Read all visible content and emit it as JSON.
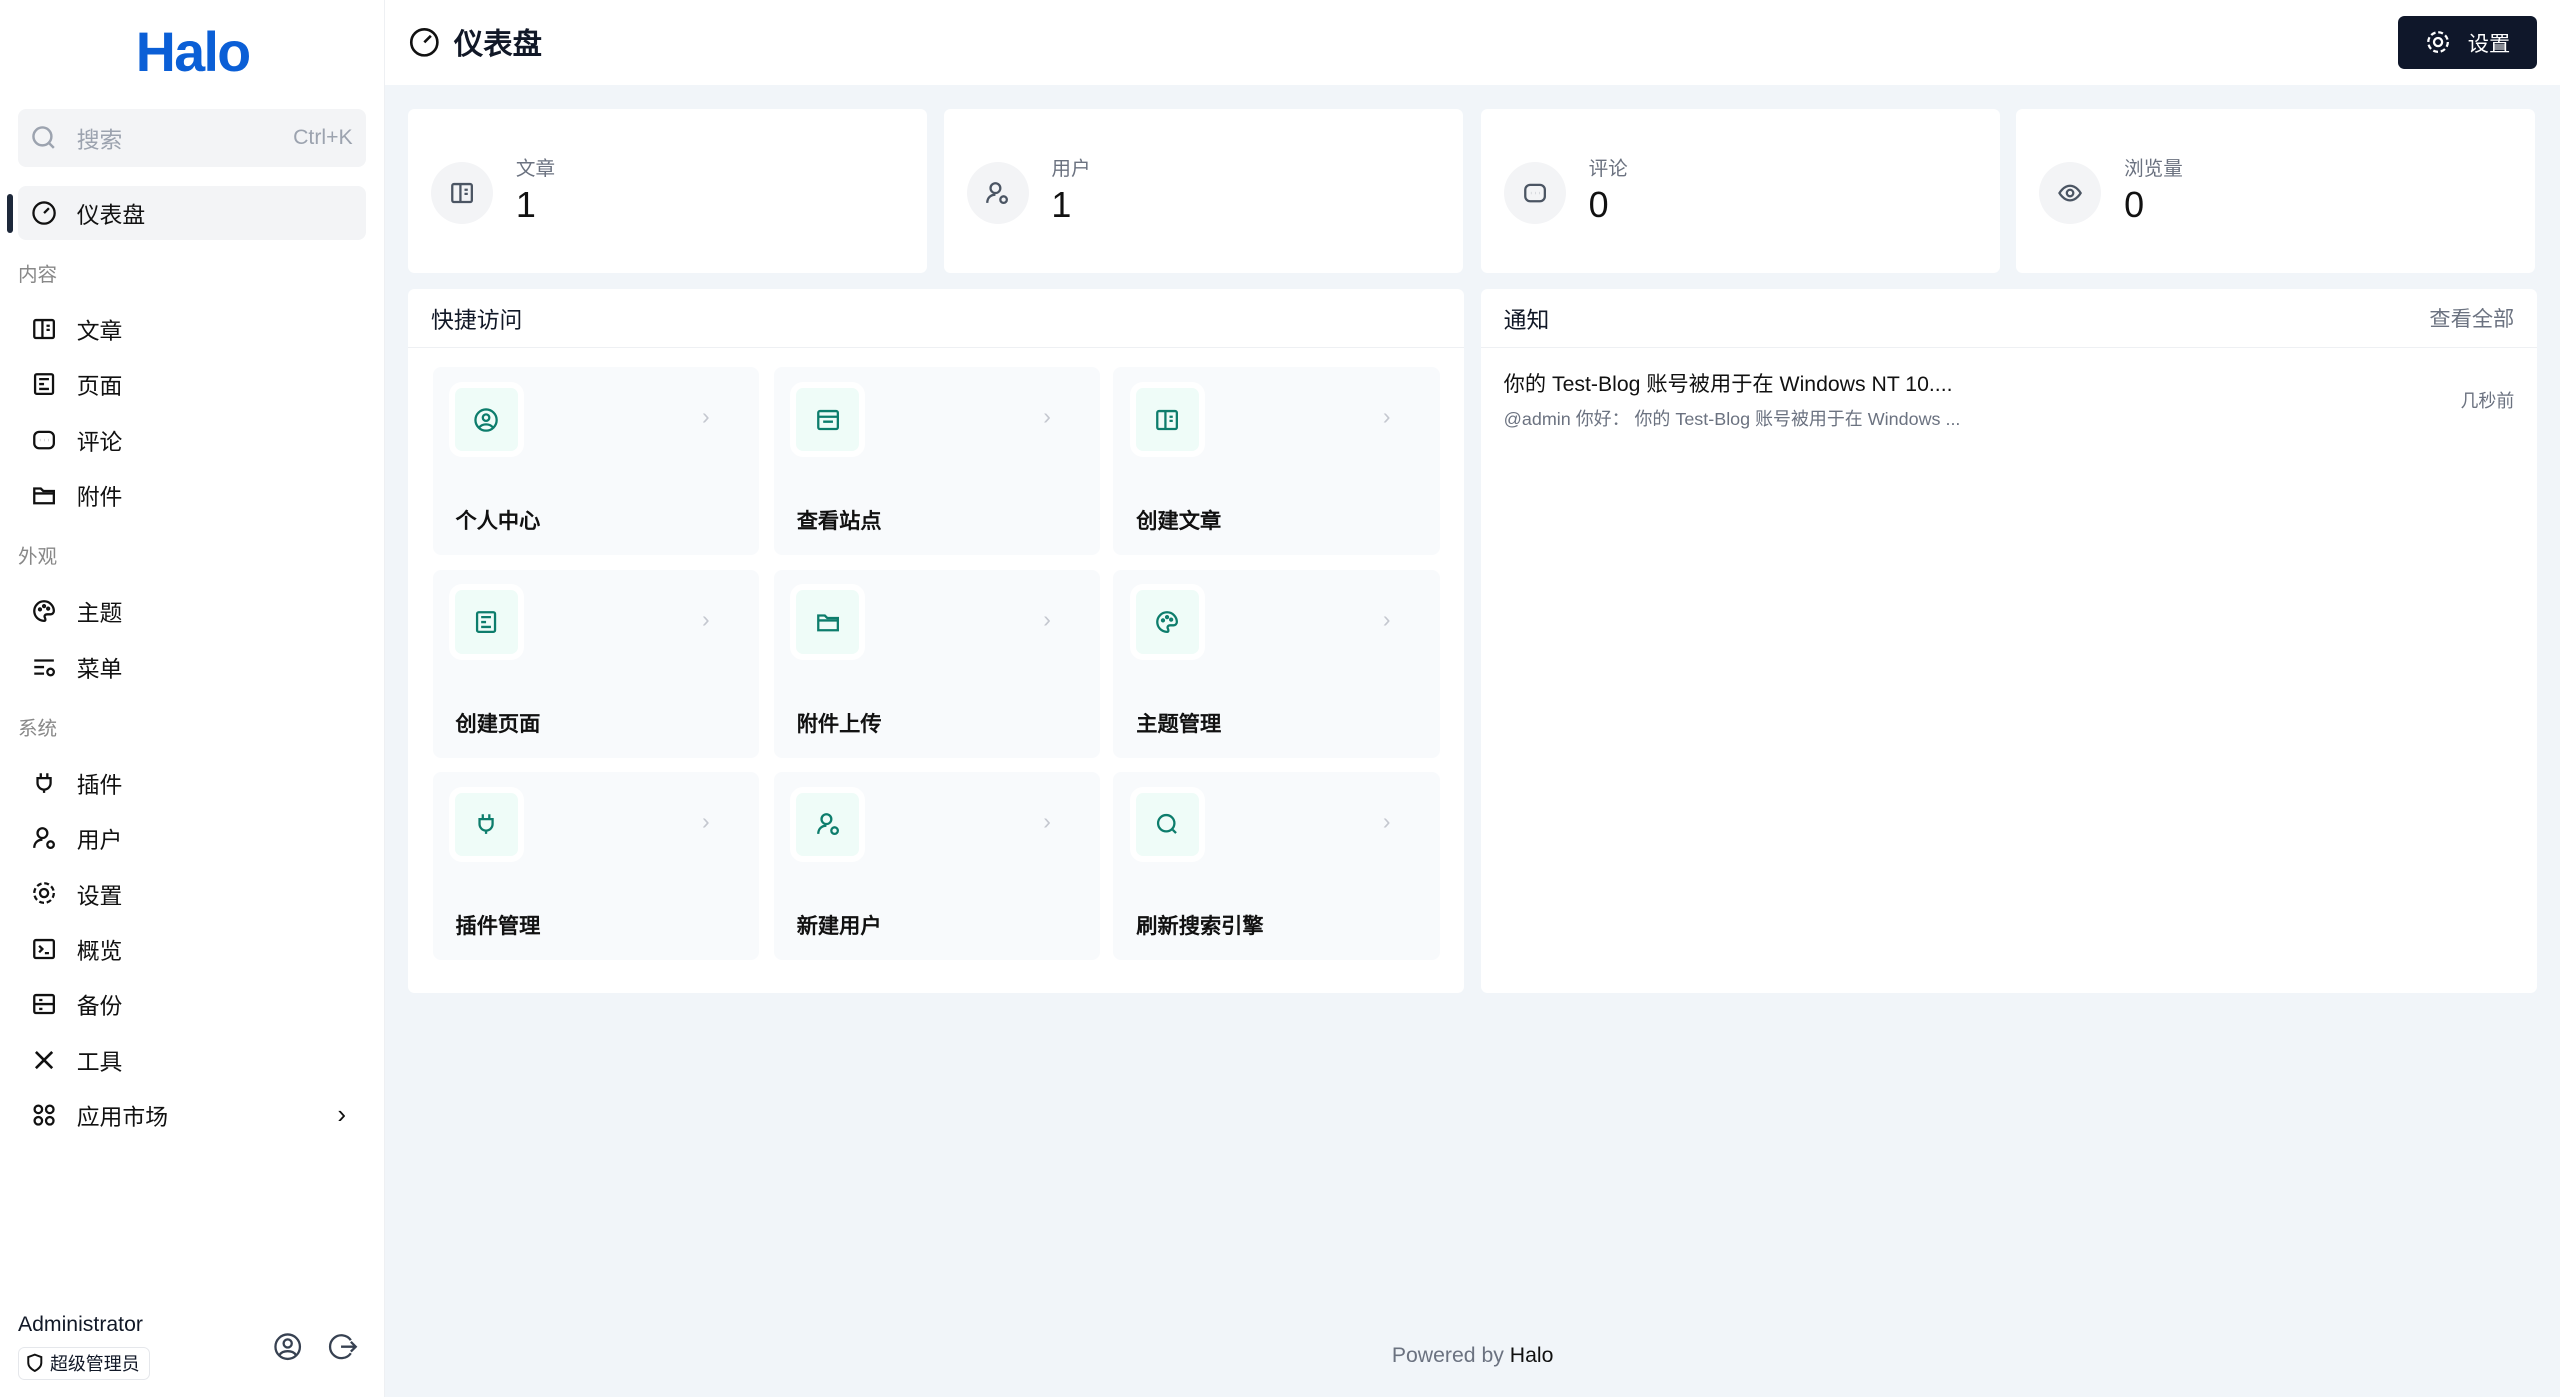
{
  "brand": {
    "logo": "Halo",
    "color": "#0b5fd6"
  },
  "sidebar": {
    "search": {
      "placeholder": "搜索",
      "shortcut": "Ctrl+K"
    },
    "dashboard": "仪表盘",
    "sections": [
      {
        "title": "内容",
        "items": [
          {
            "label": "文章",
            "icon": "book-icon"
          },
          {
            "label": "页面",
            "icon": "file-icon"
          },
          {
            "label": "评论",
            "icon": "comment-icon"
          },
          {
            "label": "附件",
            "icon": "folder-icon"
          }
        ]
      },
      {
        "title": "外观",
        "items": [
          {
            "label": "主题",
            "icon": "palette-icon"
          },
          {
            "label": "菜单",
            "icon": "menu-icon"
          }
        ]
      },
      {
        "title": "系统",
        "items": [
          {
            "label": "插件",
            "icon": "plug-icon"
          },
          {
            "label": "用户",
            "icon": "user-gear-icon"
          },
          {
            "label": "设置",
            "icon": "gear-icon"
          },
          {
            "label": "概览",
            "icon": "terminal-icon"
          },
          {
            "label": "备份",
            "icon": "backup-icon"
          },
          {
            "label": "工具",
            "icon": "tools-icon"
          },
          {
            "label": "应用市场",
            "icon": "apps-icon"
          }
        ]
      }
    ],
    "user": {
      "name": "Administrator",
      "role": "超级管理员"
    }
  },
  "header": {
    "title": "仪表盘",
    "settings_label": "设置"
  },
  "stats": [
    {
      "label": "文章",
      "value": "1"
    },
    {
      "label": "用户",
      "value": "1"
    },
    {
      "label": "评论",
      "value": "0"
    },
    {
      "label": "浏览量",
      "value": "0"
    }
  ],
  "quick_access": {
    "title": "快捷访问",
    "accent": "#0d7d6c",
    "items": [
      {
        "label": "个人中心",
        "icon": "user-circle-icon"
      },
      {
        "label": "查看站点",
        "icon": "browser-icon"
      },
      {
        "label": "创建文章",
        "icon": "book-icon"
      },
      {
        "label": "创建页面",
        "icon": "file-icon"
      },
      {
        "label": "附件上传",
        "icon": "folder-icon"
      },
      {
        "label": "主题管理",
        "icon": "palette-icon"
      },
      {
        "label": "插件管理",
        "icon": "plug-icon"
      },
      {
        "label": "新建用户",
        "icon": "user-add-icon"
      },
      {
        "label": "刷新搜索引擎",
        "icon": "search-icon"
      }
    ]
  },
  "notifications": {
    "title": "通知",
    "view_all": "查看全部",
    "items": [
      {
        "title": "你的 Test-Blog 账号被用于在 Windows NT 10....",
        "desc": "@admin 你好： 你的 Test-Blog 账号被用于在 Windows ...",
        "time": "几秒前"
      }
    ]
  },
  "footer": {
    "prefix": "Powered by ",
    "brand": "Halo"
  }
}
